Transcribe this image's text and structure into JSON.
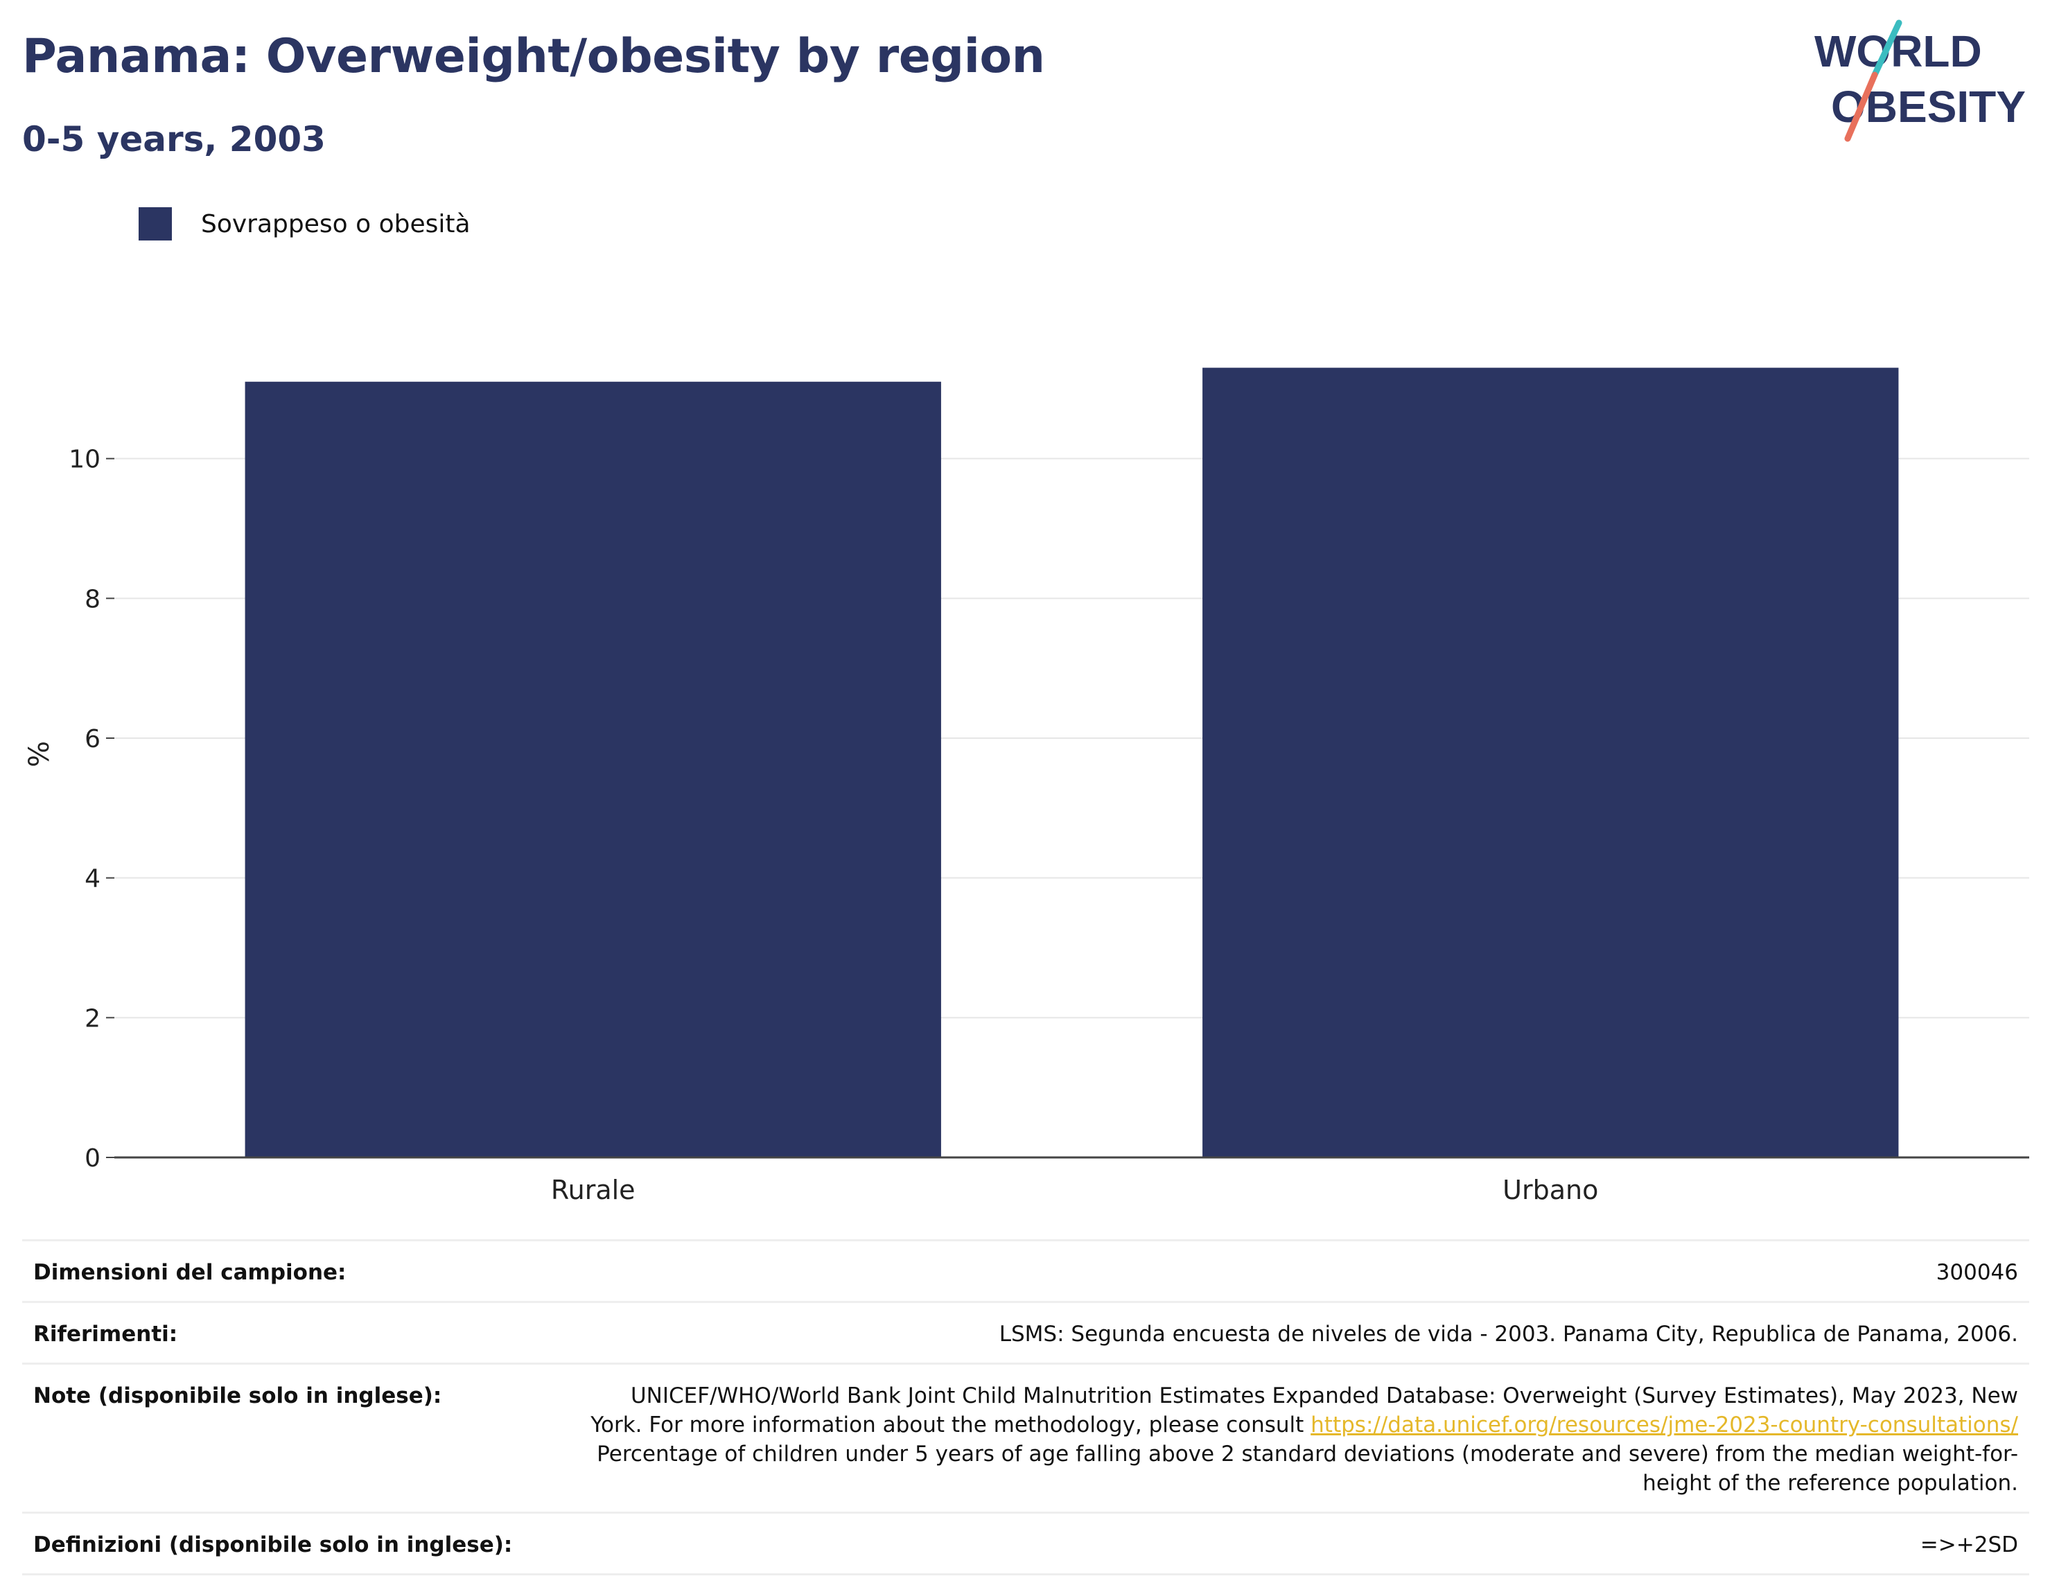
{
  "header": {
    "title": "Panama: Overweight/obesity by region",
    "subtitle": "0-5 years, 2003"
  },
  "logo": {
    "line1": "WORLD",
    "line2": "OBESITY",
    "colors": {
      "text": "#2b3562",
      "slash_teal": "#3bbcc0",
      "slash_coral": "#e8705c"
    }
  },
  "legend": {
    "label": "Sovrappeso o obesità",
    "color": "#2b3562"
  },
  "chart_data": {
    "type": "bar",
    "categories": [
      "Rurale",
      "Urbano"
    ],
    "series": [
      {
        "name": "Sovrappeso o obesità",
        "values": [
          11.1,
          11.3
        ],
        "color": "#2b3562"
      }
    ],
    "ylabel": "%",
    "xlabel": "",
    "ylim": [
      0,
      12
    ],
    "yticks": [
      0,
      2,
      4,
      6,
      8,
      10
    ],
    "grid": true,
    "legend_position": "top-left"
  },
  "info_table": {
    "sample_size": {
      "label": "Dimensioni del campione:",
      "value": "300046"
    },
    "references": {
      "label": "Riferimenti:",
      "value": "LSMS: Segunda encuesta de niveles de vida - 2003. Panama City, Republica de Panama, 2006."
    },
    "notes": {
      "label": "Note (disponibile solo in inglese):",
      "line1": "UNICEF/WHO/World Bank Joint Child Malnutrition Estimates Expanded Database: Overweight (Survey Estimates), May 2023, New",
      "line2_prefix": "York. For more information about the methodology, please consult ",
      "link": "https://data.unicef.org/resources/jme-2023-country-consultations/",
      "line3": "Percentage of children under 5 years of age falling above 2 standard deviations (moderate and severe) from the median weight-for-",
      "line4": "height of the reference population."
    },
    "definitions": {
      "label": "Definizioni (disponibile solo in inglese):",
      "value": "=>+2SD"
    }
  }
}
